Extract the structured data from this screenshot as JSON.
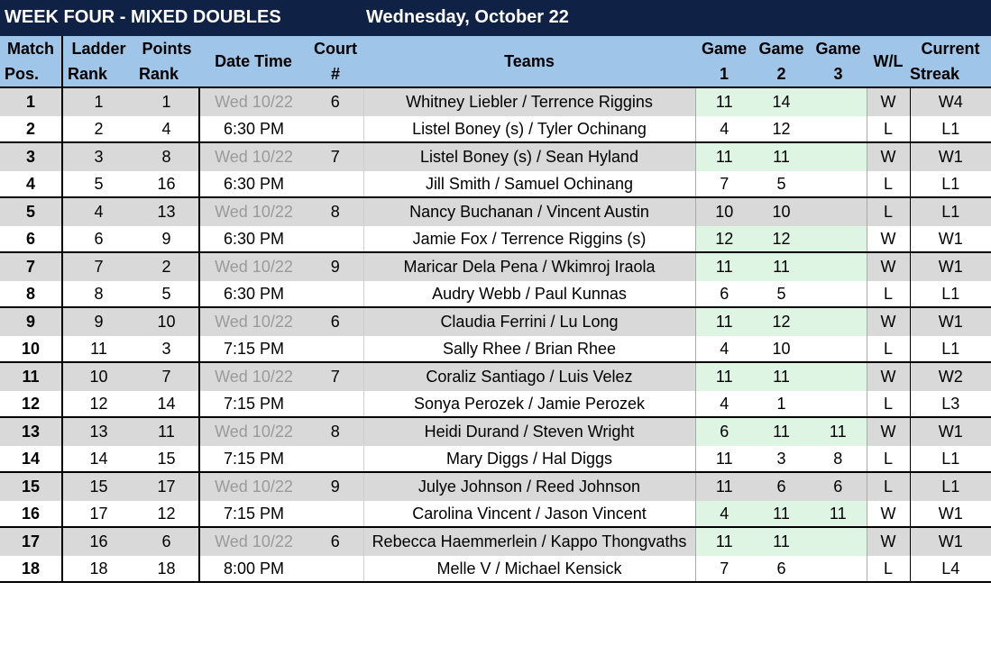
{
  "title": {
    "week": "WEEK FOUR - MIXED DOUBLES",
    "date": "Wednesday, October 22"
  },
  "headers": {
    "match_pos": [
      "Match",
      "Pos."
    ],
    "ladder_rank": [
      "Ladder",
      "Rank"
    ],
    "points_rank": [
      "Points",
      "Rank"
    ],
    "date_time": "Date Time",
    "court": [
      "Court",
      "#"
    ],
    "teams": "Teams",
    "game1": [
      "Game",
      "1"
    ],
    "game2": [
      "Game",
      "2"
    ],
    "game3": [
      "Game",
      "3"
    ],
    "wl": "W/L",
    "streak": [
      "Current",
      "Streak"
    ]
  },
  "colors": {
    "title_bg": "#0f2144",
    "header_bg": "#9fc5e8",
    "row_shade": "#d9d9d9",
    "win_highlight": "#ddf5e2"
  },
  "matches": [
    {
      "date": "Wed 10/22",
      "time": "6:30 PM",
      "court": "6",
      "rows": [
        {
          "pos": "1",
          "ladder": "1",
          "points": "1",
          "team": "Whitney Liebler / Terrence Riggins",
          "g1": "11",
          "g2": "14",
          "g3": "",
          "wl": "W",
          "streak": "W4",
          "win": true
        },
        {
          "pos": "2",
          "ladder": "2",
          "points": "4",
          "team": "Listel Boney (s)  / Tyler Ochinang",
          "g1": "4",
          "g2": "12",
          "g3": "",
          "wl": "L",
          "streak": "L1",
          "win": false
        }
      ]
    },
    {
      "date": "Wed 10/22",
      "time": "6:30 PM",
      "court": "7",
      "rows": [
        {
          "pos": "3",
          "ladder": "3",
          "points": "8",
          "team": "Listel Boney (s) / Sean Hyland",
          "g1": "11",
          "g2": "11",
          "g3": "",
          "wl": "W",
          "streak": "W1",
          "win": true
        },
        {
          "pos": "4",
          "ladder": "5",
          "points": "16",
          "team": "Jill Smith / Samuel Ochinang",
          "g1": "7",
          "g2": "5",
          "g3": "",
          "wl": "L",
          "streak": "L1",
          "win": false
        }
      ]
    },
    {
      "date": "Wed 10/22",
      "time": "6:30 PM",
      "court": "8",
      "rows": [
        {
          "pos": "5",
          "ladder": "4",
          "points": "13",
          "team": "Nancy Buchanan / Vincent Austin",
          "g1": "10",
          "g2": "10",
          "g3": "",
          "wl": "L",
          "streak": "L1",
          "win": false
        },
        {
          "pos": "6",
          "ladder": "6",
          "points": "9",
          "team": "Jamie Fox / Terrence Riggins (s)",
          "g1": "12",
          "g2": "12",
          "g3": "",
          "wl": "W",
          "streak": "W1",
          "win": true
        }
      ]
    },
    {
      "date": "Wed 10/22",
      "time": "6:30 PM",
      "court": "9",
      "rows": [
        {
          "pos": "7",
          "ladder": "7",
          "points": "2",
          "team": "Maricar Dela Pena / Wkimroj Iraola",
          "g1": "11",
          "g2": "11",
          "g3": "",
          "wl": "W",
          "streak": "W1",
          "win": true
        },
        {
          "pos": "8",
          "ladder": "8",
          "points": "5",
          "team": "Audry Webb / Paul Kunnas",
          "g1": "6",
          "g2": "5",
          "g3": "",
          "wl": "L",
          "streak": "L1",
          "win": false
        }
      ]
    },
    {
      "date": "Wed 10/22",
      "time": "7:15 PM",
      "court": "6",
      "rows": [
        {
          "pos": "9",
          "ladder": "9",
          "points": "10",
          "team": "Claudia Ferrini / Lu Long",
          "g1": "11",
          "g2": "12",
          "g3": "",
          "wl": "W",
          "streak": "W1",
          "win": true
        },
        {
          "pos": "10",
          "ladder": "11",
          "points": "3",
          "team": "Sally Rhee / Brian Rhee",
          "g1": "4",
          "g2": "10",
          "g3": "",
          "wl": "L",
          "streak": "L1",
          "win": false
        }
      ]
    },
    {
      "date": "Wed 10/22",
      "time": "7:15 PM",
      "court": "7",
      "rows": [
        {
          "pos": "11",
          "ladder": "10",
          "points": "7",
          "team": "Coraliz Santiago / Luis Velez",
          "g1": "11",
          "g2": "11",
          "g3": "",
          "wl": "W",
          "streak": "W2",
          "win": true
        },
        {
          "pos": "12",
          "ladder": "12",
          "points": "14",
          "team": "Sonya Perozek / Jamie Perozek",
          "g1": "4",
          "g2": "1",
          "g3": "",
          "wl": "L",
          "streak": "L3",
          "win": false
        }
      ]
    },
    {
      "date": "Wed 10/22",
      "time": "7:15 PM",
      "court": "8",
      "rows": [
        {
          "pos": "13",
          "ladder": "13",
          "points": "11",
          "team": "Heidi Durand / Steven Wright",
          "g1": "6",
          "g2": "11",
          "g3": "11",
          "wl": "W",
          "streak": "W1",
          "win": true
        },
        {
          "pos": "14",
          "ladder": "14",
          "points": "15",
          "team": "Mary Diggs / Hal Diggs",
          "g1": "11",
          "g2": "3",
          "g3": "8",
          "wl": "L",
          "streak": "L1",
          "win": false
        }
      ]
    },
    {
      "date": "Wed 10/22",
      "time": "7:15 PM",
      "court": "9",
      "rows": [
        {
          "pos": "15",
          "ladder": "15",
          "points": "17",
          "team": "Julye Johnson / Reed Johnson",
          "g1": "11",
          "g2": "6",
          "g3": "6",
          "wl": "L",
          "streak": "L1",
          "win": false
        },
        {
          "pos": "16",
          "ladder": "17",
          "points": "12",
          "team": "Carolina Vincent / Jason Vincent",
          "g1": "4",
          "g2": "11",
          "g3": "11",
          "wl": "W",
          "streak": "W1",
          "win": true
        }
      ]
    },
    {
      "date": "Wed 10/22",
      "time": "8:00 PM",
      "court": "6",
      "rows": [
        {
          "pos": "17",
          "ladder": "16",
          "points": "6",
          "team": "Rebecca Haemmerlein / Kappo Thongvaths",
          "g1": "11",
          "g2": "11",
          "g3": "",
          "wl": "W",
          "streak": "W1",
          "win": true
        },
        {
          "pos": "18",
          "ladder": "18",
          "points": "18",
          "team": "Melle V / Michael Kensick",
          "g1": "7",
          "g2": "6",
          "g3": "",
          "wl": "L",
          "streak": "L4",
          "win": false
        }
      ]
    }
  ]
}
